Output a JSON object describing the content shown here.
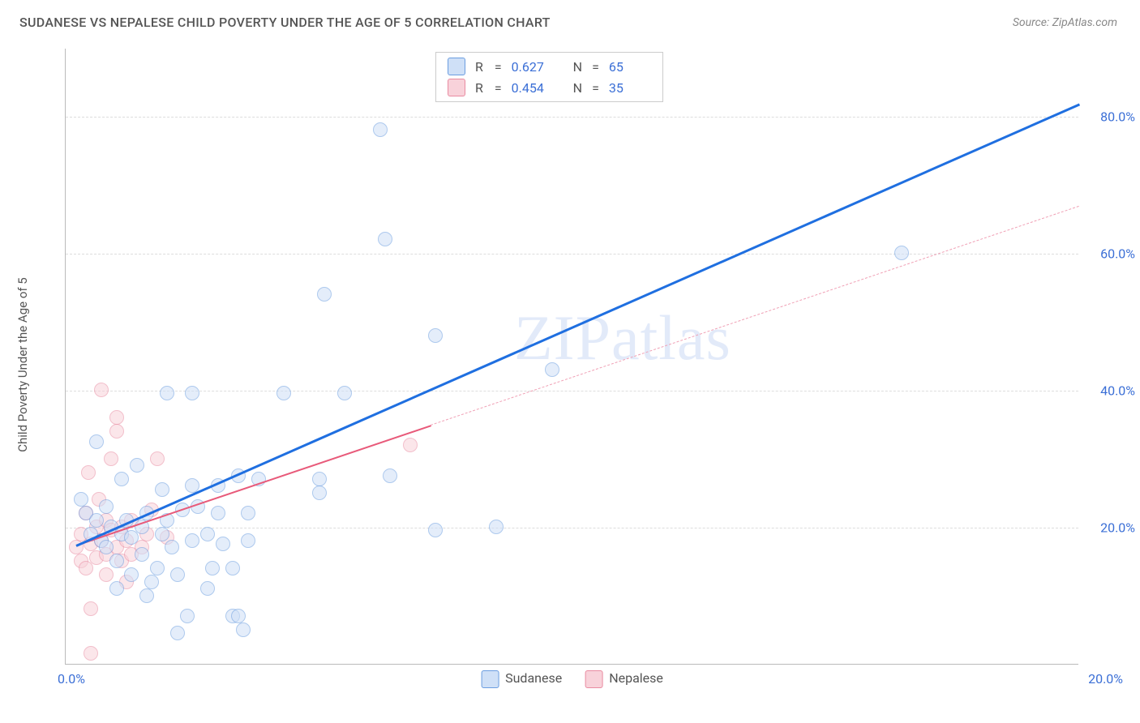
{
  "header": {
    "title": "SUDANESE VS NEPALESE CHILD POVERTY UNDER THE AGE OF 5 CORRELATION CHART",
    "source_prefix": "Source: ",
    "source_name": "ZipAtlas.com"
  },
  "watermark": "ZIPatlas",
  "chart": {
    "type": "scatter",
    "ylabel": "Child Poverty Under the Age of 5",
    "background_color": "#ffffff",
    "grid_color": "#dddddd",
    "axis_color": "#bbbbbb",
    "tick_color": "#3b6fd6",
    "xlim": [
      0,
      20
    ],
    "ylim": [
      0,
      90
    ],
    "x_ticks": [
      {
        "pos": 0,
        "label": "0.0%"
      },
      {
        "pos": 20,
        "label": "20.0%"
      }
    ],
    "y_ticks": [
      {
        "pos": 20,
        "label": "20.0%"
      },
      {
        "pos": 40,
        "label": "40.0%"
      },
      {
        "pos": 60,
        "label": "60.0%"
      },
      {
        "pos": 80,
        "label": "80.0%"
      }
    ],
    "label_fontsize": 15,
    "tick_fontsize": 16,
    "marker_radius": 9,
    "marker_stroke": 1.5,
    "marker_opacity": 0.55
  },
  "series": {
    "sudanese": {
      "label": "Sudanese",
      "fill": "#cfe0f7",
      "stroke": "#6b9de0",
      "line_color": "#1f6fe0",
      "line_width": 3,
      "r": "0.627",
      "n": "65",
      "trend": {
        "x1": 0.2,
        "y1": 17.5,
        "x2": 20.0,
        "y2": 82.0
      },
      "points": [
        {
          "x": 0.3,
          "y": 24
        },
        {
          "x": 0.4,
          "y": 22
        },
        {
          "x": 0.5,
          "y": 19
        },
        {
          "x": 0.6,
          "y": 21
        },
        {
          "x": 0.6,
          "y": 32.5
        },
        {
          "x": 0.7,
          "y": 18
        },
        {
          "x": 0.8,
          "y": 17
        },
        {
          "x": 0.8,
          "y": 23
        },
        {
          "x": 0.9,
          "y": 20
        },
        {
          "x": 1.0,
          "y": 11
        },
        {
          "x": 1.0,
          "y": 15
        },
        {
          "x": 1.1,
          "y": 19
        },
        {
          "x": 1.1,
          "y": 27
        },
        {
          "x": 1.2,
          "y": 21
        },
        {
          "x": 1.3,
          "y": 13
        },
        {
          "x": 1.3,
          "y": 18.5
        },
        {
          "x": 1.4,
          "y": 29
        },
        {
          "x": 1.5,
          "y": 20
        },
        {
          "x": 1.5,
          "y": 16
        },
        {
          "x": 1.6,
          "y": 22
        },
        {
          "x": 1.6,
          "y": 10
        },
        {
          "x": 1.7,
          "y": 12
        },
        {
          "x": 1.8,
          "y": 14
        },
        {
          "x": 1.9,
          "y": 25.5
        },
        {
          "x": 1.9,
          "y": 19
        },
        {
          "x": 2.0,
          "y": 21
        },
        {
          "x": 2.0,
          "y": 39.5
        },
        {
          "x": 2.1,
          "y": 17
        },
        {
          "x": 2.2,
          "y": 13
        },
        {
          "x": 2.2,
          "y": 4.5
        },
        {
          "x": 2.3,
          "y": 22.5
        },
        {
          "x": 2.4,
          "y": 7
        },
        {
          "x": 2.5,
          "y": 39.5
        },
        {
          "x": 2.5,
          "y": 26
        },
        {
          "x": 2.5,
          "y": 18
        },
        {
          "x": 2.6,
          "y": 23
        },
        {
          "x": 2.8,
          "y": 11
        },
        {
          "x": 2.8,
          "y": 19
        },
        {
          "x": 2.9,
          "y": 14
        },
        {
          "x": 3.0,
          "y": 22
        },
        {
          "x": 3.0,
          "y": 26
        },
        {
          "x": 3.1,
          "y": 17.5
        },
        {
          "x": 3.3,
          "y": 14
        },
        {
          "x": 3.3,
          "y": 7
        },
        {
          "x": 3.4,
          "y": 7
        },
        {
          "x": 3.4,
          "y": 27.5
        },
        {
          "x": 3.5,
          "y": 5
        },
        {
          "x": 3.6,
          "y": 22
        },
        {
          "x": 3.6,
          "y": 18
        },
        {
          "x": 3.8,
          "y": 27
        },
        {
          "x": 4.3,
          "y": 39.5
        },
        {
          "x": 5.0,
          "y": 27
        },
        {
          "x": 5.0,
          "y": 25
        },
        {
          "x": 5.1,
          "y": 54
        },
        {
          "x": 5.5,
          "y": 39.5
        },
        {
          "x": 6.2,
          "y": 78
        },
        {
          "x": 6.3,
          "y": 62
        },
        {
          "x": 6.4,
          "y": 27.5
        },
        {
          "x": 7.3,
          "y": 48
        },
        {
          "x": 7.3,
          "y": 19.5
        },
        {
          "x": 8.5,
          "y": 20
        },
        {
          "x": 9.6,
          "y": 43
        },
        {
          "x": 16.5,
          "y": 60
        }
      ]
    },
    "nepalese": {
      "label": "Nepalese",
      "fill": "#f8d2da",
      "stroke": "#e98ba1",
      "line_color": "#e85a7a",
      "dash_color": "#f0a0b5",
      "line_width": 2.5,
      "r": "0.454",
      "n": "35",
      "trend_solid": {
        "x1": 0.2,
        "y1": 17.5,
        "x2": 7.2,
        "y2": 35.0
      },
      "trend_dash": {
        "x1": 7.2,
        "y1": 35.0,
        "x2": 20.0,
        "y2": 67.0
      },
      "points": [
        {
          "x": 0.2,
          "y": 17
        },
        {
          "x": 0.3,
          "y": 15
        },
        {
          "x": 0.3,
          "y": 19
        },
        {
          "x": 0.4,
          "y": 14
        },
        {
          "x": 0.4,
          "y": 22
        },
        {
          "x": 0.45,
          "y": 28
        },
        {
          "x": 0.5,
          "y": 17.5
        },
        {
          "x": 0.5,
          "y": 8
        },
        {
          "x": 0.5,
          "y": 1.5
        },
        {
          "x": 0.6,
          "y": 20
        },
        {
          "x": 0.6,
          "y": 15.5
        },
        {
          "x": 0.65,
          "y": 24
        },
        {
          "x": 0.7,
          "y": 18
        },
        {
          "x": 0.7,
          "y": 40
        },
        {
          "x": 0.8,
          "y": 16
        },
        {
          "x": 0.8,
          "y": 21
        },
        {
          "x": 0.8,
          "y": 13
        },
        {
          "x": 0.9,
          "y": 19.5
        },
        {
          "x": 0.9,
          "y": 30
        },
        {
          "x": 1.0,
          "y": 17
        },
        {
          "x": 1.0,
          "y": 34
        },
        {
          "x": 1.0,
          "y": 36
        },
        {
          "x": 1.1,
          "y": 20
        },
        {
          "x": 1.1,
          "y": 15
        },
        {
          "x": 1.2,
          "y": 18
        },
        {
          "x": 1.2,
          "y": 12
        },
        {
          "x": 1.3,
          "y": 21
        },
        {
          "x": 1.3,
          "y": 16
        },
        {
          "x": 1.5,
          "y": 17
        },
        {
          "x": 1.6,
          "y": 19
        },
        {
          "x": 1.7,
          "y": 22.5
        },
        {
          "x": 1.8,
          "y": 30
        },
        {
          "x": 2.0,
          "y": 18.5
        },
        {
          "x": 6.8,
          "y": 32
        }
      ]
    }
  },
  "legend_labels": {
    "r_prefix": "R",
    "eq": "=",
    "n_prefix": "N"
  }
}
